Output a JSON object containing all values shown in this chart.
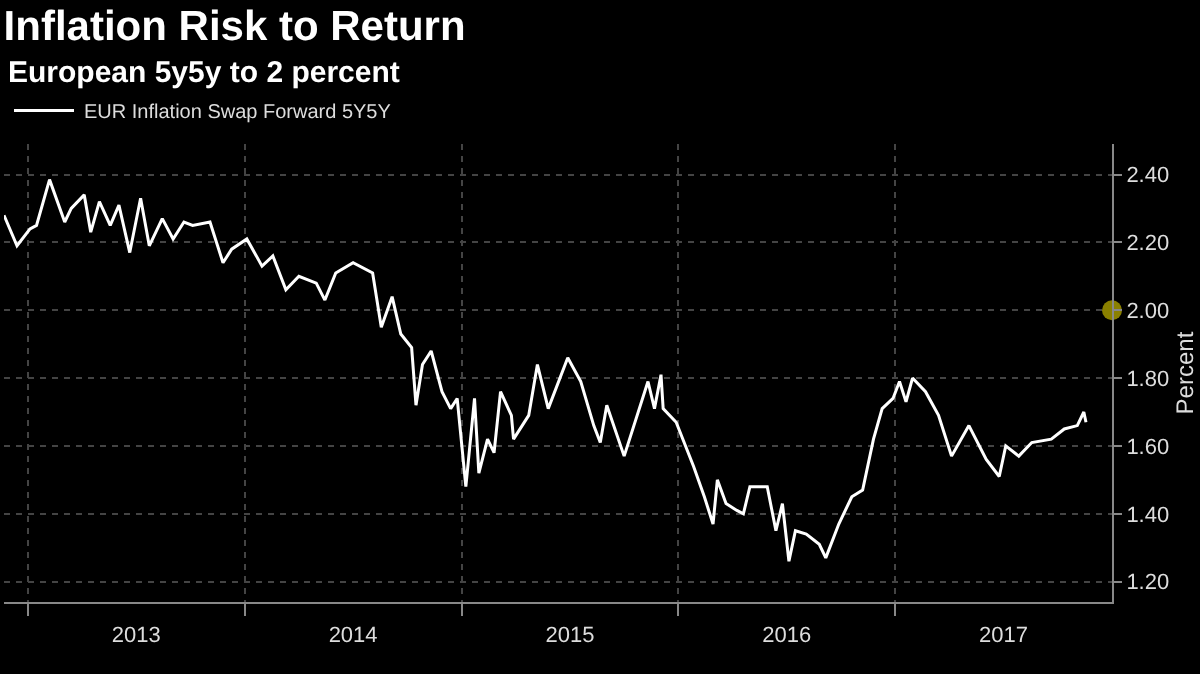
{
  "chart_data": {
    "type": "line",
    "title": "Inflation Risk to Return",
    "subtitle": "European 5y5y to 2 percent",
    "ylabel": "Percent",
    "xlim": [
      2012.89,
      2018.0
    ],
    "xticks": [
      {
        "value": 2013,
        "label": null
      },
      {
        "value": 2013.5,
        "label": "2013"
      },
      {
        "value": 2014,
        "label": null
      },
      {
        "value": 2014.5,
        "label": "2014"
      },
      {
        "value": 2015,
        "label": null
      },
      {
        "value": 2015.5,
        "label": "2015"
      },
      {
        "value": 2016,
        "label": null
      },
      {
        "value": 2016.5,
        "label": "2016"
      },
      {
        "value": 2017,
        "label": null
      },
      {
        "value": 2017.5,
        "label": "2017"
      }
    ],
    "ylim": [
      1.14,
      2.49
    ],
    "yticks": [
      {
        "value": 1.2,
        "label": "1.20"
      },
      {
        "value": 1.4,
        "label": "1.40"
      },
      {
        "value": 1.6,
        "label": "1.60"
      },
      {
        "value": 1.8,
        "label": "1.80"
      },
      {
        "value": 2.0,
        "label": "2.00"
      },
      {
        "value": 2.2,
        "label": "2.20"
      },
      {
        "value": 2.4,
        "label": "2.40"
      }
    ],
    "grid": true,
    "legend": "top left",
    "marker": "none",
    "line_style": "solid",
    "series": [
      {
        "name": "EUR Inflation Swap Forward 5Y5Y",
        "color": "#ffffff",
        "x": [
          2012.89,
          2012.95,
          2013.01,
          2013.04,
          2013.1,
          2013.17,
          2013.2,
          2013.26,
          2013.29,
          2013.33,
          2013.38,
          2013.42,
          2013.47,
          2013.52,
          2013.56,
          2013.62,
          2013.67,
          2013.72,
          2013.76,
          2013.84,
          2013.9,
          2013.94,
          2014.01,
          2014.08,
          2014.13,
          2014.19,
          2014.25,
          2014.33,
          2014.37,
          2014.42,
          2014.5,
          2014.59,
          2014.63,
          2014.68,
          2014.72,
          2014.77,
          2014.79,
          2014.82,
          2014.86,
          2014.91,
          2014.95,
          2014.98,
          2015.02,
          2015.06,
          2015.08,
          2015.12,
          2015.15,
          2015.18,
          2015.23,
          2015.24,
          2015.31,
          2015.35,
          2015.4,
          2015.49,
          2015.55,
          2015.61,
          2015.64,
          2015.67,
          2015.75,
          2015.86,
          2015.89,
          2015.92,
          2015.93,
          2015.99,
          2016.07,
          2016.12,
          2016.16,
          2016.18,
          2016.22,
          2016.27,
          2016.3,
          2016.33,
          2016.41,
          2016.45,
          2016.48,
          2016.51,
          2016.54,
          2016.59,
          2016.65,
          2016.68,
          2016.74,
          2016.8,
          2016.85,
          2016.9,
          2016.94,
          2016.99,
          2017.02,
          2017.05,
          2017.08,
          2017.14,
          2017.2,
          2017.26,
          2017.34,
          2017.42,
          2017.48,
          2017.51,
          2017.57,
          2017.63,
          2017.72,
          2017.78,
          2017.84,
          2017.87,
          2017.88
        ],
        "values": [
          2.28,
          2.19,
          2.24,
          2.25,
          2.385,
          2.26,
          2.3,
          2.34,
          2.23,
          2.32,
          2.25,
          2.31,
          2.17,
          2.33,
          2.19,
          2.27,
          2.21,
          2.26,
          2.25,
          2.26,
          2.14,
          2.18,
          2.21,
          2.13,
          2.16,
          2.06,
          2.1,
          2.08,
          2.03,
          2.11,
          2.14,
          2.11,
          1.95,
          2.04,
          1.93,
          1.89,
          1.72,
          1.84,
          1.88,
          1.76,
          1.71,
          1.74,
          1.48,
          1.74,
          1.52,
          1.62,
          1.58,
          1.76,
          1.69,
          1.62,
          1.69,
          1.84,
          1.71,
          1.86,
          1.79,
          1.66,
          1.61,
          1.72,
          1.57,
          1.79,
          1.71,
          1.81,
          1.71,
          1.67,
          1.54,
          1.45,
          1.37,
          1.5,
          1.43,
          1.41,
          1.4,
          1.48,
          1.48,
          1.35,
          1.43,
          1.26,
          1.35,
          1.34,
          1.31,
          1.27,
          1.37,
          1.45,
          1.47,
          1.62,
          1.71,
          1.74,
          1.79,
          1.73,
          1.8,
          1.76,
          1.69,
          1.57,
          1.66,
          1.56,
          1.51,
          1.6,
          1.57,
          1.61,
          1.62,
          1.65,
          1.66,
          1.7,
          1.67
        ]
      },
      {
        "type": "scatter",
        "marker": "circle",
        "color": "#8a8000",
        "x": [
          2018.0
        ],
        "values": [
          2.0
        ]
      }
    ]
  }
}
